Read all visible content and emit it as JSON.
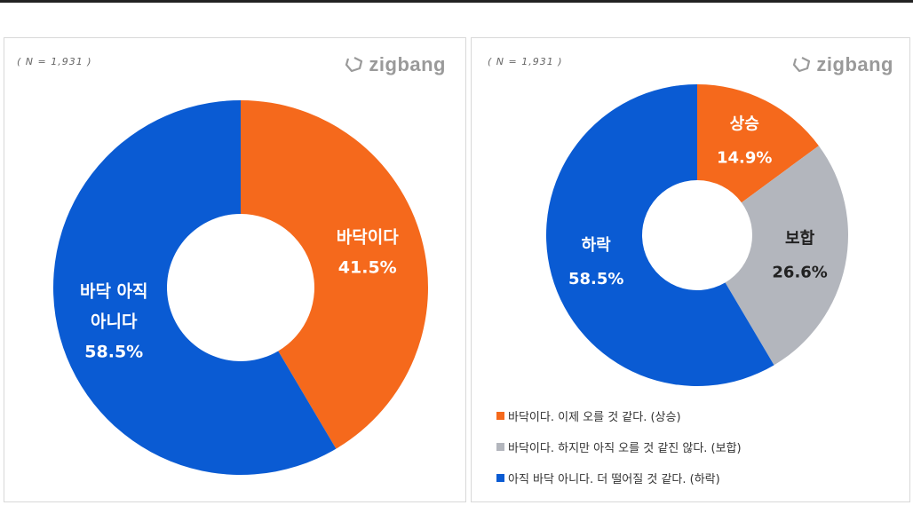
{
  "charts": [
    {
      "sample_note": "( N = 1,931 )",
      "brand": "zigbang"
    },
    {
      "sample_note": "( N = 1,931 )",
      "brand": "zigbang"
    }
  ],
  "legend": [
    {
      "label": "바닥이다. 이제 오를 것 같다. (상승)",
      "color": "#F5691C"
    },
    {
      "label": "바닥이다. 하지만 아직 오를 것 같진 않다. (보합)",
      "color": "#B3B6BD"
    },
    {
      "label": "아직 바닥 아니다. 더 떨어질 것 같다. (하락)",
      "color": "#0A5BD3"
    }
  ],
  "chart_data": [
    {
      "type": "pie",
      "donut": true,
      "slices": [
        {
          "label_lines": [
            "바닥이다"
          ],
          "value": 41.5,
          "display": "41.5%",
          "color": "#F5691C",
          "text_color": "#ffffff"
        },
        {
          "label_lines": [
            "바닥 아직",
            "아니다"
          ],
          "value": 58.5,
          "display": "58.5%",
          "color": "#0A5BD3",
          "text_color": "#ffffff"
        }
      ]
    },
    {
      "type": "pie",
      "donut": true,
      "slices": [
        {
          "label_lines": [
            "상승"
          ],
          "value": 14.9,
          "display": "14.9%",
          "color": "#F5691C",
          "text_color": "#ffffff"
        },
        {
          "label_lines": [
            "보합"
          ],
          "value": 26.6,
          "display": "26.6%",
          "color": "#B3B6BD",
          "text_color": "#222222"
        },
        {
          "label_lines": [
            "하락"
          ],
          "value": 58.5,
          "display": "58.5%",
          "color": "#0A5BD3",
          "text_color": "#ffffff"
        }
      ]
    }
  ]
}
